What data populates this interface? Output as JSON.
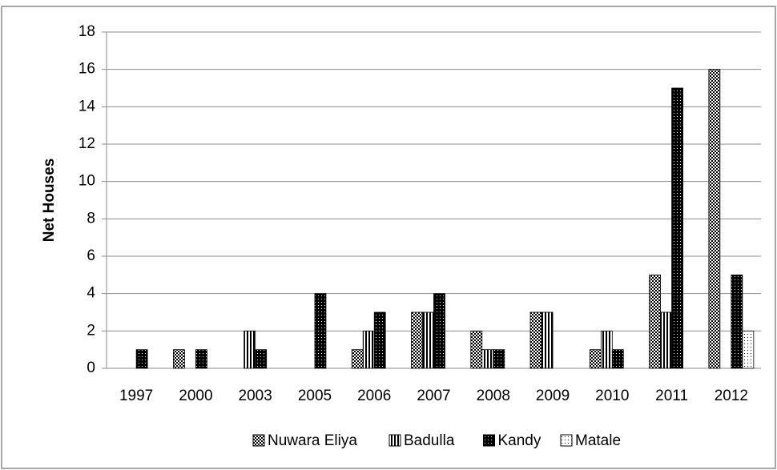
{
  "chart_data": {
    "type": "bar",
    "y_label": "Net Houses",
    "categories": [
      "1997",
      "2000",
      "2003",
      "2005",
      "2006",
      "2007",
      "2008",
      "2009",
      "2010",
      "2011",
      "2012"
    ],
    "series": [
      {
        "name": "Nuwara Eliya",
        "color": "#000000",
        "values": [
          0,
          1,
          0,
          0,
          1,
          3,
          2,
          3,
          1,
          5,
          16
        ]
      },
      {
        "name": "Badulla",
        "color": "#000000",
        "values": [
          0,
          0,
          2,
          0,
          2,
          3,
          1,
          3,
          2,
          3,
          0
        ]
      },
      {
        "name": "Kandy",
        "color": "#000000",
        "values": [
          1,
          1,
          1,
          4,
          3,
          4,
          1,
          0,
          1,
          15,
          5
        ]
      },
      {
        "name": "Matale",
        "color": "#000000",
        "values": [
          0,
          0,
          0,
          0,
          0,
          0,
          0,
          0,
          0,
          0,
          2
        ]
      }
    ],
    "ylim": [
      0,
      18
    ],
    "yticks": [
      0,
      2,
      4,
      6,
      8,
      10,
      12,
      14,
      16,
      18
    ],
    "grid": true,
    "legend": "bottom"
  }
}
